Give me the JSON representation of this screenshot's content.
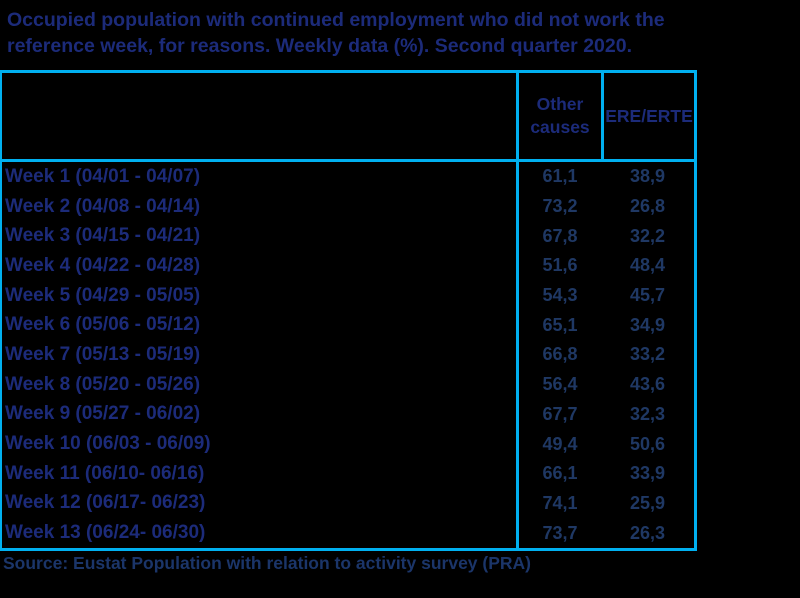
{
  "title": {
    "lines": [
      "Occupied population with continued employment who did not work the",
      "reference week, for reasons. Weekly data (%). Second quarter 2020."
    ]
  },
  "table": {
    "col_headers": {
      "other": "Other causes",
      "ere": "ERE/ERTE"
    },
    "rows": [
      {
        "label": "Week 1 (04/01 - 04/07)",
        "other": "61,1",
        "ere": "38,9"
      },
      {
        "label": "Week 2 (04/08 - 04/14)",
        "other": "73,2",
        "ere": "26,8"
      },
      {
        "label": "Week 3 (04/15 - 04/21)",
        "other": "67,8",
        "ere": "32,2"
      },
      {
        "label": "Week 4 (04/22 - 04/28)",
        "other": "51,6",
        "ere": "48,4"
      },
      {
        "label": "Week 5 (04/29 - 05/05)",
        "other": "54,3",
        "ere": "45,7"
      },
      {
        "label": "Week 6 (05/06 - 05/12)",
        "other": "65,1",
        "ere": "34,9"
      },
      {
        "label": "Week 7 (05/13 - 05/19)",
        "other": "66,8",
        "ere": "33,2"
      },
      {
        "label": "Week 8 (05/20 - 05/26)",
        "other": "56,4",
        "ere": "43,6"
      },
      {
        "label": "Week 9 (05/27 - 06/02)",
        "other": "67,7",
        "ere": "32,3"
      },
      {
        "label": "Week 10 (06/03 - 06/09)",
        "other": "49,4",
        "ere": "50,6"
      },
      {
        "label": "Week 11 (06/10- 06/16)",
        "other": "66,1",
        "ere": "33,9"
      },
      {
        "label": "Week 12 (06/17- 06/23)",
        "other": "74,1",
        "ere": "25,9"
      },
      {
        "label": "Week 13 (06/24- 06/30)",
        "other": "73,7",
        "ere": "26,3"
      }
    ]
  },
  "source": "Source: Eustat Population with relation to activity survey (PRA)",
  "colors": {
    "bg": "#000000",
    "border": "#00b0f0",
    "heading": "#1c2b7a",
    "value": "#1f3864",
    "source": "#1b3569"
  },
  "chart_data": {
    "type": "table",
    "title": "Occupied population with continued employment who did not work the reference week, for reasons. Weekly data (%). Second quarter 2020.",
    "categories": [
      "Week 1 (04/01 - 04/07)",
      "Week 2 (04/08 - 04/14)",
      "Week 3 (04/15 - 04/21)",
      "Week 4 (04/22 - 04/28)",
      "Week 5 (04/29 - 05/05)",
      "Week 6 (05/06 - 05/12)",
      "Week 7 (05/13 - 05/19)",
      "Week 8 (05/20 - 05/26)",
      "Week 9 (05/27 - 06/02)",
      "Week 10 (06/03 - 06/09)",
      "Week 11 (06/10- 06/16)",
      "Week 12 (06/17- 06/23)",
      "Week 13 (06/24- 06/30)"
    ],
    "series": [
      {
        "name": "Other causes",
        "values": [
          61.1,
          73.2,
          67.8,
          51.6,
          54.3,
          65.1,
          66.8,
          56.4,
          67.7,
          49.4,
          66.1,
          74.1,
          73.7
        ]
      },
      {
        "name": "ERE/ERTE",
        "values": [
          38.9,
          26.8,
          32.2,
          48.4,
          45.7,
          34.9,
          33.2,
          43.6,
          32.3,
          50.6,
          33.9,
          25.9,
          26.3
        ]
      }
    ],
    "unit": "%",
    "source": "Source: Eustat Population with relation to activity survey (PRA)"
  }
}
